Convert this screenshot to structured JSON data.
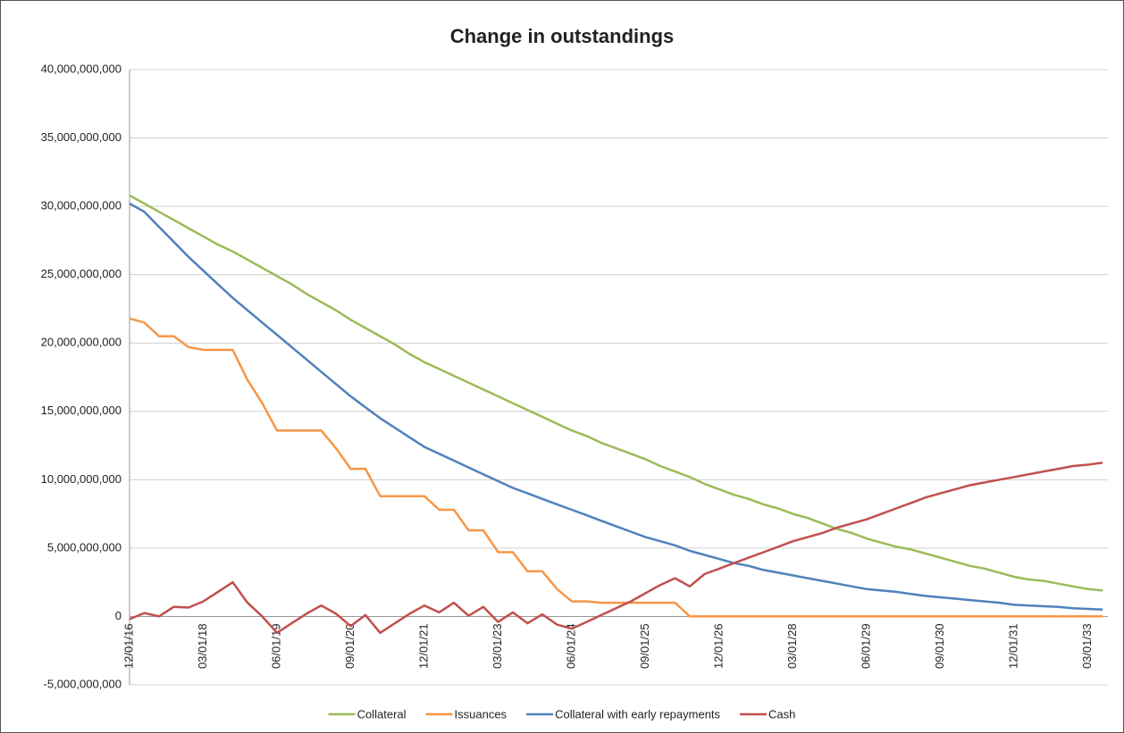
{
  "chart_data": {
    "type": "line",
    "title": "Change in outstandings",
    "categories": [
      "12/01/16",
      null,
      null,
      null,
      null,
      "03/01/18",
      null,
      null,
      null,
      null,
      "06/01/19",
      null,
      null,
      null,
      null,
      "09/01/20",
      null,
      null,
      null,
      null,
      "12/01/21",
      null,
      null,
      null,
      null,
      "03/01/23",
      null,
      null,
      null,
      null,
      "06/01/24",
      null,
      null,
      null,
      null,
      "09/01/25",
      null,
      null,
      null,
      null,
      "12/01/26",
      null,
      null,
      null,
      null,
      "03/01/28",
      null,
      null,
      null,
      null,
      "06/01/29",
      null,
      null,
      null,
      null,
      "09/01/30",
      null,
      null,
      null,
      null,
      "12/01/31",
      null,
      null,
      null,
      null,
      "03/01/33",
      null
    ],
    "series": [
      {
        "name": "Collateral",
        "color": "#9bbb59",
        "values": [
          30800000000.0,
          30200000000.0,
          29600000000.0,
          29000000000.0,
          28400000000.0,
          27800000000.0,
          27200000000.0,
          26700000000.0,
          26100000000.0,
          25500000000.0,
          24900000000.0,
          24300000000.0,
          23600000000.0,
          23000000000.0,
          22400000000.0,
          21700000000.0,
          21100000000.0,
          20500000000.0,
          19900000000.0,
          19200000000.0,
          18600000000.0,
          18100000000.0,
          17600000000.0,
          17100000000.0,
          16600000000.0,
          16100000000.0,
          15600000000.0,
          15100000000.0,
          14600000000.0,
          14100000000.0,
          13600000000.0,
          13200000000.0,
          12700000000.0,
          12300000000.0,
          11900000000.0,
          11500000000.0,
          11000000000.0,
          10600000000.0,
          10200000000.0,
          9700000000.0,
          9300000000.0,
          8900000000.0,
          8600000000.0,
          8200000000.0,
          7900000000.0,
          7500000000.0,
          7200000000.0,
          6800000000.0,
          6400000000.0,
          6100000000.0,
          5700000000.0,
          5400000000.0,
          5100000000.0,
          4900000000.0,
          4600000000.0,
          4300000000.0,
          4000000000.0,
          3700000000.0,
          3500000000.0,
          3200000000.0,
          2900000000.0,
          2700000000.0,
          2600000000.0,
          2400000000.0,
          2200000000.0,
          2000000000.0,
          1900000000.0
        ]
      },
      {
        "name": "Issuances",
        "color": "#f79646",
        "values": [
          21800000000.0,
          21500000000.0,
          20500000000.0,
          20500000000.0,
          19700000000.0,
          19500000000.0,
          19500000000.0,
          19500000000.0,
          17300000000.0,
          15600000000.0,
          13600000000.0,
          13600000000.0,
          13600000000.0,
          13600000000.0,
          12300000000.0,
          10800000000.0,
          10800000000.0,
          8800000000.0,
          8800000000.0,
          8800000000.0,
          8800000000.0,
          7800000000.0,
          7800000000.0,
          6300000000.0,
          6300000000.0,
          4700000000.0,
          4700000000.0,
          3300000000.0,
          3300000000.0,
          2000000000.0,
          1100000000.0,
          1100000000.0,
          1000000000.0,
          1000000000.0,
          1000000000.0,
          1000000000.0,
          1000000000.0,
          1000000000.0,
          0,
          0,
          0,
          0,
          0,
          0,
          0,
          0,
          0,
          0,
          0,
          0,
          0,
          0,
          0,
          0,
          0,
          0,
          0,
          0,
          0,
          0,
          0,
          0,
          0,
          0,
          0,
          0,
          0
        ]
      },
      {
        "name": "Collateral with early repayments",
        "color": "#4f81bd",
        "values": [
          30200000000.0,
          29600000000.0,
          28500000000.0,
          27400000000.0,
          26300000000.0,
          25300000000.0,
          24300000000.0,
          23300000000.0,
          22400000000.0,
          21500000000.0,
          20600000000.0,
          19700000000.0,
          18800000000.0,
          17900000000.0,
          17000000000.0,
          16100000000.0,
          15300000000.0,
          14500000000.0,
          13800000000.0,
          13100000000.0,
          12400000000.0,
          11900000000.0,
          11400000000.0,
          10900000000.0,
          10400000000.0,
          9900000000.0,
          9400000000.0,
          9000000000.0,
          8600000000.0,
          8200000000.0,
          7800000000.0,
          7400000000.0,
          7000000000.0,
          6600000000.0,
          6200000000.0,
          5800000000.0,
          5500000000.0,
          5200000000.0,
          4800000000.0,
          4500000000.0,
          4200000000.0,
          3900000000.0,
          3700000000.0,
          3400000000.0,
          3200000000.0,
          3000000000.0,
          2800000000.0,
          2600000000.0,
          2400000000.0,
          2200000000.0,
          2000000000.0,
          1900000000.0,
          1800000000.0,
          1650000000.0,
          1500000000.0,
          1400000000.0,
          1300000000.0,
          1200000000.0,
          1100000000.0,
          1000000000.0,
          850000000.0,
          800000000.0,
          750000000.0,
          700000000.0,
          600000000.0,
          550000000.0,
          500000000.0
        ]
      },
      {
        "name": "Cash",
        "color": "#c0504d",
        "values": [
          -200000000.0,
          250000000.0,
          0,
          700000000.0,
          650000000.0,
          1100000000.0,
          1800000000.0,
          2500000000.0,
          1000000000.0,
          0,
          -1200000000.0,
          -500000000.0,
          200000000.0,
          800000000.0,
          200000000.0,
          -700000000.0,
          100000000.0,
          -1200000000.0,
          -500000000.0,
          200000000.0,
          800000000.0,
          300000000.0,
          1000000000.0,
          50000000.0,
          700000000.0,
          -400000000.0,
          300000000.0,
          -500000000.0,
          150000000.0,
          -600000000.0,
          -900000000.0,
          -400000000.0,
          100000000.0,
          600000000.0,
          1100000000.0,
          1700000000.0,
          2300000000.0,
          2800000000.0,
          2200000000.0,
          3100000000.0,
          3500000000.0,
          3900000000.0,
          4300000000.0,
          4700000000.0,
          5100000000.0,
          5500000000.0,
          5800000000.0,
          6100000000.0,
          6500000000.0,
          6800000000.0,
          7100000000.0,
          7500000000.0,
          7900000000.0,
          8300000000.0,
          8700000000.0,
          9000000000.0,
          9300000000.0,
          9600000000.0,
          9800000000.0,
          10000000000.0,
          10200000000.0,
          10400000000.0,
          10600000000.0,
          10800000000.0,
          11000000000.0,
          11100000000.0,
          11250000000.0
        ]
      }
    ],
    "ylim": [
      -5000000000.0,
      40000000000.0
    ],
    "yticks": [
      {
        "value": -5000000000.0,
        "label": "-5,000,000,000"
      },
      0,
      {
        "value": 5000000000.0,
        "label": "5,000,000,000"
      },
      {
        "value": 10000000000.0,
        "label": "10,000,000,000"
      },
      {
        "value": 15000000000.0,
        "label": "15,000,000,000"
      },
      {
        "value": 20000000000.0,
        "label": "20,000,000,000"
      },
      {
        "value": 25000000000.0,
        "label": "25,000,000,000"
      },
      {
        "value": 30000000000.0,
        "label": "30,000,000,000"
      },
      {
        "value": 35000000000.0,
        "label": "35,000,000,000"
      },
      {
        "value": 40000000000.0,
        "label": "40,000,000,000"
      }
    ],
    "grid": true,
    "legend": "bottom"
  }
}
